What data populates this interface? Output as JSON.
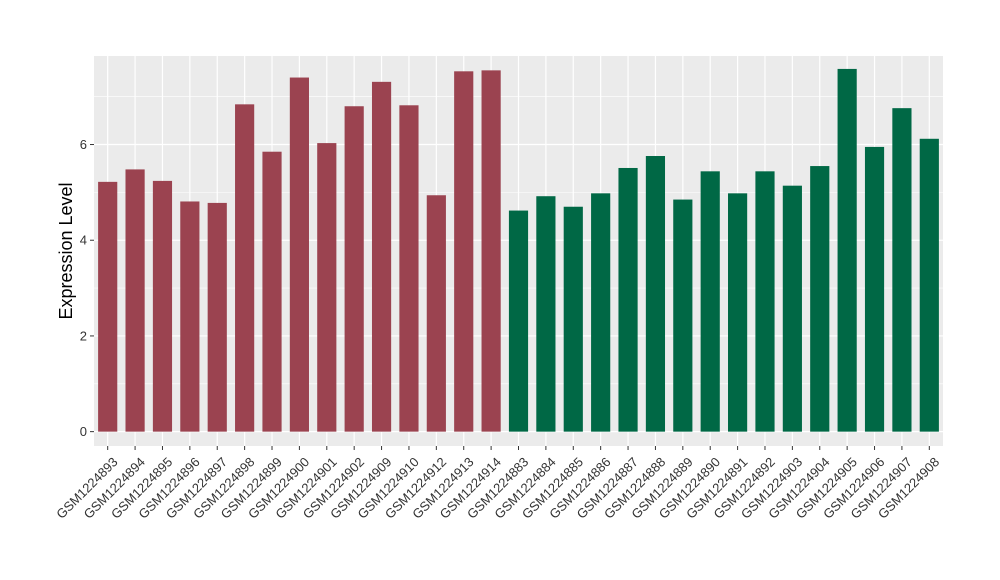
{
  "chart_data": {
    "type": "bar",
    "ylabel": "Expression Level",
    "xlabel": "",
    "ylim": [
      -0.3,
      7.85
    ],
    "yticks": [
      0,
      2,
      4,
      6
    ],
    "grid": true,
    "legend": "none",
    "panel_background": "#ebebeb",
    "grid_color": "#ffffff",
    "groups": [
      {
        "color": "#9b4350",
        "first_index": 0,
        "last_index": 14
      },
      {
        "color": "#006845",
        "first_index": 15,
        "last_index": 30
      }
    ],
    "categories": [
      "GSM1224893",
      "GSM1224894",
      "GSM1224895",
      "GSM1224896",
      "GSM1224897",
      "GSM1224898",
      "GSM1224899",
      "GSM1224900",
      "GSM1224901",
      "GSM1224902",
      "GSM1224909",
      "GSM1224910",
      "GSM1224912",
      "GSM1224913",
      "GSM1224914",
      "GSM1224883",
      "GSM1224884",
      "GSM1224885",
      "GSM1224886",
      "GSM1224887",
      "GSM1224888",
      "GSM1224889",
      "GSM1224890",
      "GSM1224891",
      "GSM1224892",
      "GSM1224903",
      "GSM1224904",
      "GSM1224905",
      "GSM1224906",
      "GSM1224907",
      "GSM1224908"
    ],
    "values": [
      5.22,
      5.48,
      5.24,
      4.81,
      4.78,
      6.84,
      5.85,
      7.4,
      6.03,
      6.8,
      7.31,
      6.82,
      4.94,
      7.53,
      7.55,
      4.62,
      4.92,
      4.7,
      4.98,
      5.51,
      5.76,
      4.85,
      5.44,
      4.98,
      5.44,
      5.14,
      5.55,
      7.58,
      5.95,
      6.76,
      6.12
    ]
  }
}
